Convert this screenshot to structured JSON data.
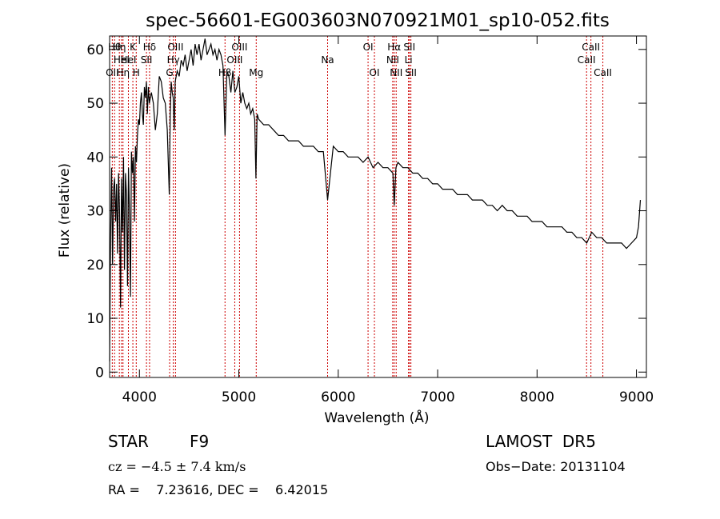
{
  "chart_data": {
    "type": "line",
    "title": "spec-56601-EG003603N070921M01_sp10-052.fits",
    "xlabel": "Wavelength (Å)",
    "ylabel": "Flux (relative)",
    "xlim": [
      3700,
      9100
    ],
    "ylim": [
      -1,
      62.5
    ],
    "xticks": [
      4000,
      5000,
      6000,
      7000,
      8000,
      9000
    ],
    "yticks": [
      0,
      10,
      20,
      30,
      40,
      50,
      60
    ],
    "grid": false,
    "line_color": "#000000",
    "marker_color": "#cc0000",
    "series": [
      {
        "x": [
          3700,
          3710,
          3720,
          3730,
          3740,
          3750,
          3760,
          3770,
          3780,
          3790,
          3800,
          3810,
          3820,
          3830,
          3840,
          3850,
          3860,
          3870,
          3880,
          3890,
          3900,
          3910,
          3920,
          3930,
          3940,
          3950,
          3960,
          3970,
          3980,
          3990,
          4000,
          4010,
          4020,
          4030,
          4040,
          4050,
          4060,
          4070,
          4080,
          4090,
          4100,
          4120,
          4140,
          4160,
          4180,
          4200,
          4220,
          4240,
          4260,
          4280,
          4300,
          4310,
          4320,
          4330,
          4340,
          4350,
          4360,
          4380,
          4400,
          4420,
          4440,
          4460,
          4480,
          4500,
          4520,
          4540,
          4560,
          4580,
          4600,
          4620,
          4640,
          4660,
          4680,
          4700,
          4720,
          4740,
          4760,
          4780,
          4800,
          4820,
          4840,
          4861,
          4880,
          4900,
          4920,
          4940,
          4960,
          4980,
          5000,
          5020,
          5040,
          5060,
          5080,
          5100,
          5120,
          5140,
          5160,
          5172,
          5184,
          5200,
          5250,
          5300,
          5350,
          5400,
          5450,
          5500,
          5550,
          5600,
          5650,
          5700,
          5750,
          5800,
          5850,
          5893,
          5950,
          6000,
          6050,
          6100,
          6150,
          6200,
          6250,
          6300,
          6350,
          6400,
          6450,
          6500,
          6550,
          6563,
          6580,
          6600,
          6650,
          6700,
          6750,
          6800,
          6850,
          6900,
          6950,
          7000,
          7050,
          7100,
          7150,
          7200,
          7250,
          7300,
          7350,
          7400,
          7450,
          7500,
          7550,
          7600,
          7650,
          7700,
          7750,
          7800,
          7850,
          7900,
          7950,
          8000,
          8050,
          8100,
          8150,
          8200,
          8250,
          8300,
          8350,
          8400,
          8450,
          8500,
          8550,
          8600,
          8650,
          8700,
          8750,
          8800,
          8850,
          8900,
          8950,
          9000,
          9020,
          9040
        ],
        "y": [
          2,
          25,
          38,
          20,
          34,
          36,
          28,
          35,
          22,
          37,
          30,
          12,
          36,
          26,
          40,
          19,
          37,
          33,
          16,
          38,
          29,
          14,
          41,
          37,
          40,
          28,
          42,
          39,
          44,
          47,
          46,
          50,
          52,
          48,
          46,
          53,
          51,
          54,
          48,
          53,
          50,
          52,
          50,
          45,
          48,
          55,
          54,
          51,
          50,
          45,
          33,
          48,
          54,
          52,
          51,
          45,
          54,
          56,
          55,
          58,
          57,
          59,
          56,
          58,
          60,
          57,
          61,
          59,
          61,
          58,
          60,
          62,
          59,
          60,
          61,
          59,
          60,
          58,
          60,
          59,
          57,
          44,
          56,
          55,
          52,
          56,
          52,
          53,
          55,
          50,
          52,
          50,
          49,
          50,
          48,
          49,
          47,
          36,
          48,
          47,
          46,
          46,
          45,
          44,
          44,
          43,
          43,
          43,
          42,
          42,
          42,
          41,
          41,
          32,
          42,
          41,
          41,
          40,
          40,
          40,
          39,
          40,
          38,
          39,
          38,
          38,
          37,
          31,
          38,
          39,
          38,
          38,
          37,
          37,
          36,
          36,
          35,
          35,
          34,
          34,
          34,
          33,
          33,
          33,
          32,
          32,
          32,
          31,
          31,
          30,
          31,
          30,
          30,
          29,
          29,
          29,
          28,
          28,
          28,
          27,
          27,
          27,
          27,
          26,
          26,
          25,
          25,
          24,
          26,
          25,
          25,
          24,
          24,
          24,
          24,
          23,
          24,
          25,
          27,
          32
        ]
      }
    ],
    "lines": [
      {
        "x": 3727,
        "label": "OII",
        "row": 3
      },
      {
        "x": 3750,
        "label": "Hθ",
        "row": 1
      },
      {
        "x": 3798,
        "label": "Hη",
        "row": 1
      },
      {
        "x": 3820,
        "label": "HeI",
        "row": 2
      },
      {
        "x": 3835,
        "label": "Hη",
        "row": 3
      },
      {
        "x": 3889,
        "label": "HeI",
        "row": 2
      },
      {
        "x": 3934,
        "label": "K",
        "row": 1
      },
      {
        "x": 3968,
        "label": "H",
        "row": 3
      },
      {
        "x": 4071,
        "label": "SII",
        "row": 2
      },
      {
        "x": 4102,
        "label": "Hδ",
        "row": 1
      },
      {
        "x": 4304,
        "label": "G",
        "row": 3
      },
      {
        "x": 4341,
        "label": "Hγ",
        "row": 2
      },
      {
        "x": 4363,
        "label": "OIII",
        "row": 1
      },
      {
        "x": 4861,
        "label": "Hβ",
        "row": 3
      },
      {
        "x": 4959,
        "label": "OIII",
        "row": 2
      },
      {
        "x": 5007,
        "label": "OIII",
        "row": 1
      },
      {
        "x": 5175,
        "label": "Mg",
        "row": 3
      },
      {
        "x": 5893,
        "label": "Na",
        "row": 2
      },
      {
        "x": 6300,
        "label": "OI",
        "row": 1
      },
      {
        "x": 6364,
        "label": "OI",
        "row": 3
      },
      {
        "x": 6548,
        "label": "NII",
        "row": 2
      },
      {
        "x": 6563,
        "label": "Hα",
        "row": 1
      },
      {
        "x": 6583,
        "label": "NII",
        "row": 3
      },
      {
        "x": 6707,
        "label": "Li",
        "row": 2
      },
      {
        "x": 6716,
        "label": "SII",
        "row": 1
      },
      {
        "x": 6731,
        "label": "SII",
        "row": 3
      },
      {
        "x": 8498,
        "label": "CaII",
        "row": 2
      },
      {
        "x": 8542,
        "label": "CaII",
        "row": 1
      },
      {
        "x": 8662,
        "label": "CaII",
        "row": 3
      }
    ]
  },
  "info": {
    "class": "STAR",
    "subclass": "F9",
    "survey": "LAMOST  DR5",
    "cz": "cz = −4.5 ± 7.4 km/s",
    "obs_date": "Obs−Date: 20131104",
    "radec": "RA =    7.23616, DEC =    6.42015"
  }
}
